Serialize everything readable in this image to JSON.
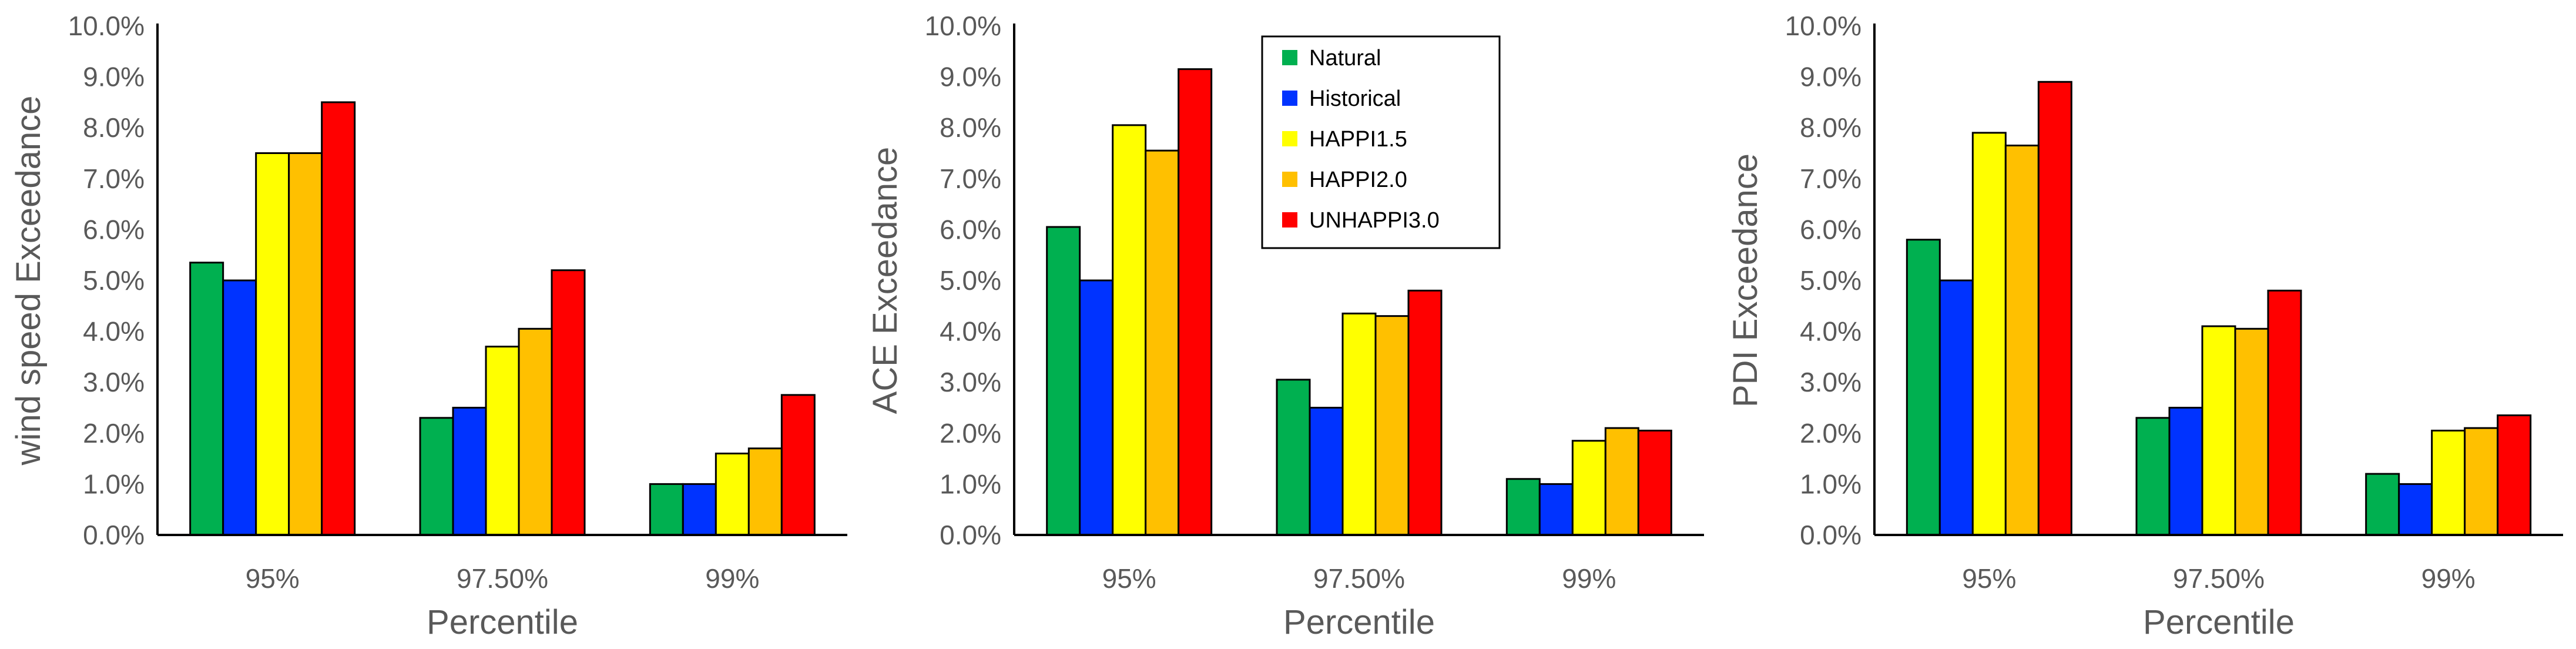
{
  "chart_data": [
    {
      "type": "bar",
      "title": "",
      "xlabel": "Percentile",
      "ylabel": "wind speed Exceedance",
      "categories": [
        "95%",
        "97.50%",
        "99%"
      ],
      "ylim": [
        0,
        10
      ],
      "yticks": [
        "0.0%",
        "1.0%",
        "2.0%",
        "3.0%",
        "4.0%",
        "5.0%",
        "6.0%",
        "7.0%",
        "8.0%",
        "9.0%",
        "10.0%"
      ],
      "series": [
        {
          "name": "Natural",
          "values": [
            5.35,
            2.3,
            1.0
          ]
        },
        {
          "name": "Historical",
          "values": [
            5.0,
            2.5,
            1.0
          ]
        },
        {
          "name": "HAPPI1.5",
          "values": [
            7.5,
            3.7,
            1.6
          ]
        },
        {
          "name": "HAPPI2.0",
          "values": [
            7.5,
            4.05,
            1.7
          ]
        },
        {
          "name": "UNHAPPI3.0",
          "values": [
            8.5,
            5.2,
            2.75
          ]
        }
      ]
    },
    {
      "type": "bar",
      "title": "",
      "xlabel": "Percentile",
      "ylabel": "ACE Exceedance",
      "categories": [
        "95%",
        "97.50%",
        "99%"
      ],
      "ylim": [
        0,
        10
      ],
      "yticks": [
        "0.0%",
        "1.0%",
        "2.0%",
        "3.0%",
        "4.0%",
        "5.0%",
        "6.0%",
        "7.0%",
        "8.0%",
        "9.0%",
        "10.0%"
      ],
      "series": [
        {
          "name": "Natural",
          "values": [
            6.05,
            3.05,
            1.1
          ]
        },
        {
          "name": "Historical",
          "values": [
            5.0,
            2.5,
            1.0
          ]
        },
        {
          "name": "HAPPI1.5",
          "values": [
            8.05,
            4.35,
            1.85
          ]
        },
        {
          "name": "HAPPI2.0",
          "values": [
            7.55,
            4.3,
            2.1
          ]
        },
        {
          "name": "UNHAPPI3.0",
          "values": [
            9.15,
            4.8,
            2.05
          ]
        }
      ]
    },
    {
      "type": "bar",
      "title": "",
      "xlabel": "Percentile",
      "ylabel": "PDI Exceedance",
      "categories": [
        "95%",
        "97.50%",
        "99%"
      ],
      "ylim": [
        0,
        10
      ],
      "yticks": [
        "0.0%",
        "1.0%",
        "2.0%",
        "3.0%",
        "4.0%",
        "5.0%",
        "6.0%",
        "7.0%",
        "8.0%",
        "9.0%",
        "10.0%"
      ],
      "series": [
        {
          "name": "Natural",
          "values": [
            5.8,
            2.3,
            1.2
          ]
        },
        {
          "name": "Historical",
          "values": [
            5.0,
            2.5,
            1.0
          ]
        },
        {
          "name": "HAPPI1.5",
          "values": [
            7.9,
            4.1,
            2.05
          ]
        },
        {
          "name": "HAPPI2.0",
          "values": [
            7.65,
            4.05,
            2.1
          ]
        },
        {
          "name": "UNHAPPI3.0",
          "values": [
            8.9,
            4.8,
            2.35
          ]
        }
      ]
    }
  ],
  "legend": {
    "placement": "inside-top-of-middle-chart",
    "entries": [
      "Natural",
      "Historical",
      "HAPPI1.5",
      "HAPPI2.0",
      "UNHAPPI3.0"
    ]
  },
  "colors": {
    "Natural": "#00b050",
    "Historical": "#0033ff",
    "HAPPI1.5": "#ffff00",
    "HAPPI2.0": "#ffc000",
    "UNHAPPI3.0": "#ff0000"
  }
}
